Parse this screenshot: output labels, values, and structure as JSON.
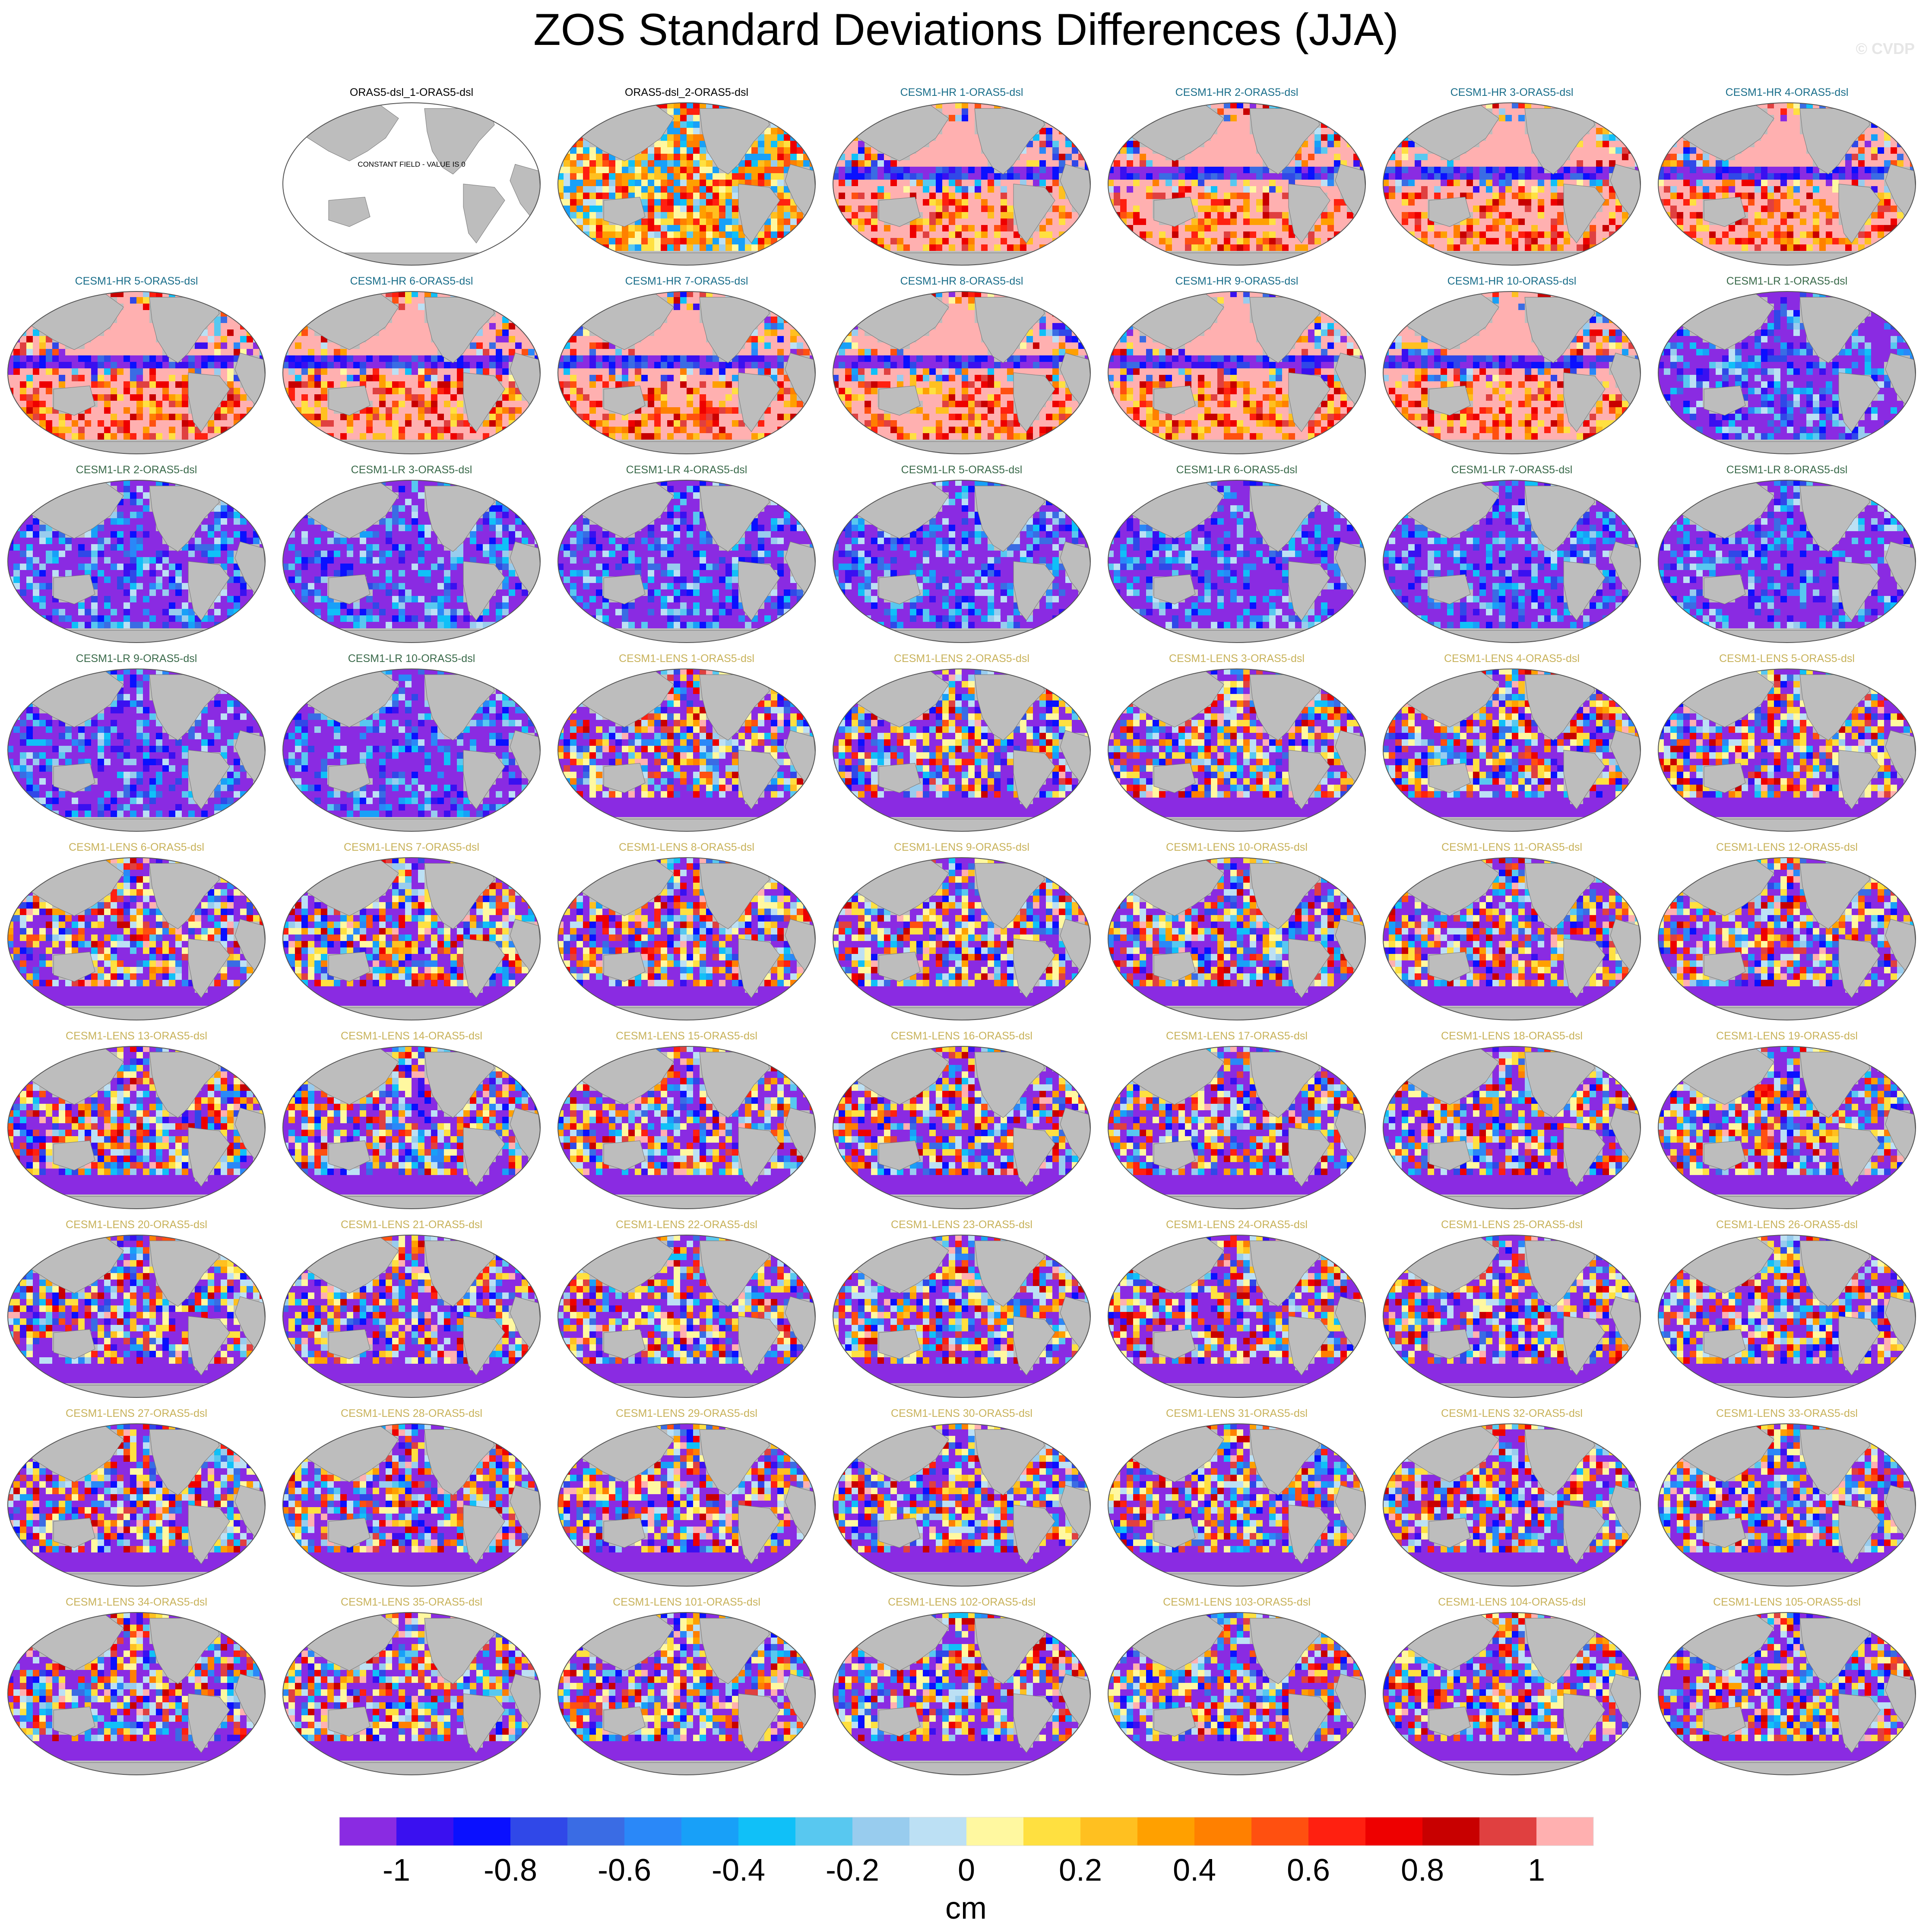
{
  "title": "ZOS Standard Deviations Differences (JJA)",
  "credit": "© CVDP",
  "colors": {
    "land": "#bdbdbd",
    "ocean_outline": "#555555",
    "title_obs": "#000000",
    "title_hr": "#1a6e8a",
    "title_lr": "#3a6a4a",
    "title_lens": "#c8b25a"
  },
  "panels": [
    {
      "label": "ORAS5-dsl_1-ORAS5-dsl",
      "group": "obs",
      "note": "CONSTANT FIELD - VALUE IS 0"
    },
    {
      "label": "ORAS5-dsl_2-ORAS5-dsl",
      "group": "obs2"
    },
    {
      "label": "CESM1-HR 1-ORAS5-dsl",
      "group": "hr"
    },
    {
      "label": "CESM1-HR 2-ORAS5-dsl",
      "group": "hr"
    },
    {
      "label": "CESM1-HR 3-ORAS5-dsl",
      "group": "hr"
    },
    {
      "label": "CESM1-HR 4-ORAS5-dsl",
      "group": "hr"
    },
    {
      "label": "CESM1-HR 5-ORAS5-dsl",
      "group": "hr"
    },
    {
      "label": "CESM1-HR 6-ORAS5-dsl",
      "group": "hr"
    },
    {
      "label": "CESM1-HR 7-ORAS5-dsl",
      "group": "hr"
    },
    {
      "label": "CESM1-HR 8-ORAS5-dsl",
      "group": "hr"
    },
    {
      "label": "CESM1-HR 9-ORAS5-dsl",
      "group": "hr"
    },
    {
      "label": "CESM1-HR 10-ORAS5-dsl",
      "group": "hr"
    },
    {
      "label": "CESM1-LR 1-ORAS5-dsl",
      "group": "lr"
    },
    {
      "label": "CESM1-LR 2-ORAS5-dsl",
      "group": "lr"
    },
    {
      "label": "CESM1-LR 3-ORAS5-dsl",
      "group": "lr"
    },
    {
      "label": "CESM1-LR 4-ORAS5-dsl",
      "group": "lr"
    },
    {
      "label": "CESM1-LR 5-ORAS5-dsl",
      "group": "lr"
    },
    {
      "label": "CESM1-LR 6-ORAS5-dsl",
      "group": "lr"
    },
    {
      "label": "CESM1-LR 7-ORAS5-dsl",
      "group": "lr"
    },
    {
      "label": "CESM1-LR 8-ORAS5-dsl",
      "group": "lr"
    },
    {
      "label": "CESM1-LR 9-ORAS5-dsl",
      "group": "lr"
    },
    {
      "label": "CESM1-LR 10-ORAS5-dsl",
      "group": "lr"
    },
    {
      "label": "CESM1-LENS 1-ORAS5-dsl",
      "group": "lens"
    },
    {
      "label": "CESM1-LENS 2-ORAS5-dsl",
      "group": "lens"
    },
    {
      "label": "CESM1-LENS 3-ORAS5-dsl",
      "group": "lens"
    },
    {
      "label": "CESM1-LENS 4-ORAS5-dsl",
      "group": "lens"
    },
    {
      "label": "CESM1-LENS 5-ORAS5-dsl",
      "group": "lens"
    },
    {
      "label": "CESM1-LENS 6-ORAS5-dsl",
      "group": "lens"
    },
    {
      "label": "CESM1-LENS 7-ORAS5-dsl",
      "group": "lens"
    },
    {
      "label": "CESM1-LENS 8-ORAS5-dsl",
      "group": "lens"
    },
    {
      "label": "CESM1-LENS 9-ORAS5-dsl",
      "group": "lens"
    },
    {
      "label": "CESM1-LENS 10-ORAS5-dsl",
      "group": "lens"
    },
    {
      "label": "CESM1-LENS 11-ORAS5-dsl",
      "group": "lens"
    },
    {
      "label": "CESM1-LENS 12-ORAS5-dsl",
      "group": "lens"
    },
    {
      "label": "CESM1-LENS 13-ORAS5-dsl",
      "group": "lens"
    },
    {
      "label": "CESM1-LENS 14-ORAS5-dsl",
      "group": "lens"
    },
    {
      "label": "CESM1-LENS 15-ORAS5-dsl",
      "group": "lens"
    },
    {
      "label": "CESM1-LENS 16-ORAS5-dsl",
      "group": "lens"
    },
    {
      "label": "CESM1-LENS 17-ORAS5-dsl",
      "group": "lens"
    },
    {
      "label": "CESM1-LENS 18-ORAS5-dsl",
      "group": "lens"
    },
    {
      "label": "CESM1-LENS 19-ORAS5-dsl",
      "group": "lens"
    },
    {
      "label": "CESM1-LENS 20-ORAS5-dsl",
      "group": "lens"
    },
    {
      "label": "CESM1-LENS 21-ORAS5-dsl",
      "group": "lens"
    },
    {
      "label": "CESM1-LENS 22-ORAS5-dsl",
      "group": "lens"
    },
    {
      "label": "CESM1-LENS 23-ORAS5-dsl",
      "group": "lens"
    },
    {
      "label": "CESM1-LENS 24-ORAS5-dsl",
      "group": "lens"
    },
    {
      "label": "CESM1-LENS 25-ORAS5-dsl",
      "group": "lens"
    },
    {
      "label": "CESM1-LENS 26-ORAS5-dsl",
      "group": "lens"
    },
    {
      "label": "CESM1-LENS 27-ORAS5-dsl",
      "group": "lens"
    },
    {
      "label": "CESM1-LENS 28-ORAS5-dsl",
      "group": "lens"
    },
    {
      "label": "CESM1-LENS 29-ORAS5-dsl",
      "group": "lens"
    },
    {
      "label": "CESM1-LENS 30-ORAS5-dsl",
      "group": "lens"
    },
    {
      "label": "CESM1-LENS 31-ORAS5-dsl",
      "group": "lens"
    },
    {
      "label": "CESM1-LENS 32-ORAS5-dsl",
      "group": "lens"
    },
    {
      "label": "CESM1-LENS 33-ORAS5-dsl",
      "group": "lens"
    },
    {
      "label": "CESM1-LENS 34-ORAS5-dsl",
      "group": "lens"
    },
    {
      "label": "CESM1-LENS 35-ORAS5-dsl",
      "group": "lens"
    },
    {
      "label": "CESM1-LENS 101-ORAS5-dsl",
      "group": "lens"
    },
    {
      "label": "CESM1-LENS 102-ORAS5-dsl",
      "group": "lens"
    },
    {
      "label": "CESM1-LENS 103-ORAS5-dsl",
      "group": "lens"
    },
    {
      "label": "CESM1-LENS 104-ORAS5-dsl",
      "group": "lens"
    },
    {
      "label": "CESM1-LENS 105-ORAS5-dsl",
      "group": "lens"
    }
  ],
  "colorbar": {
    "units": "cm",
    "tick_labels": [
      "-1",
      "-0.8",
      "-0.6",
      "-0.4",
      "-0.2",
      "0",
      "0.2",
      "0.4",
      "0.6",
      "0.8",
      "1"
    ],
    "colors": [
      "#8a2be2",
      "#3a10f0",
      "#0a10ff",
      "#3048e8",
      "#3a6ce4",
      "#2a88f8",
      "#18a0f8",
      "#10c0f8",
      "#58c8f0",
      "#98ccee",
      "#bce0f4",
      "#fff8a0",
      "#ffe040",
      "#ffc020",
      "#ffa000",
      "#ff8000",
      "#ff5010",
      "#ff2010",
      "#ee0000",
      "#c80000",
      "#e04040",
      "#ffb0b0"
    ]
  }
}
